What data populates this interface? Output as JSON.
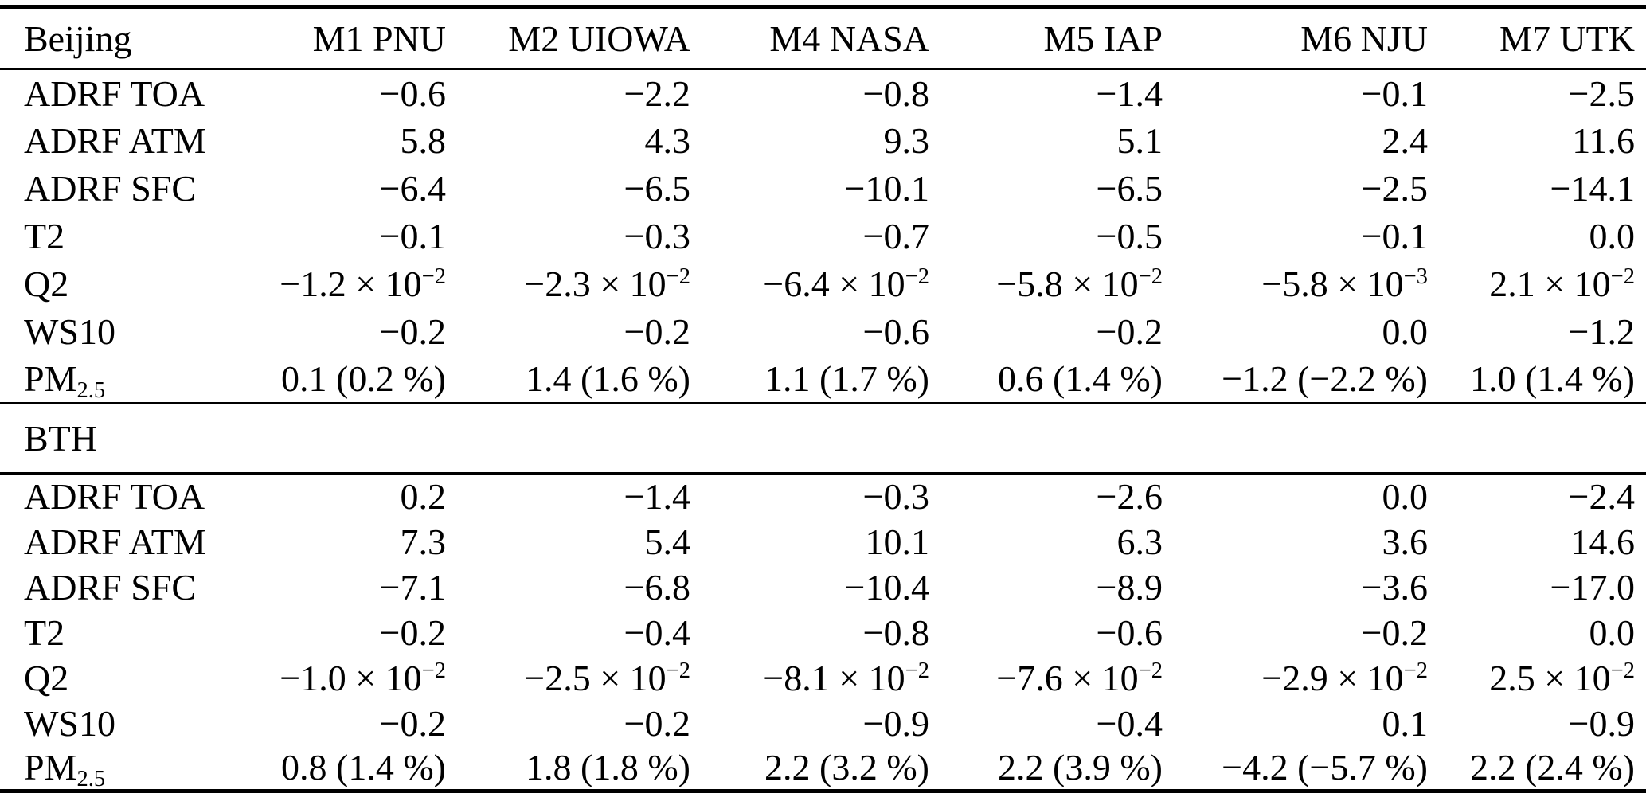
{
  "table": {
    "header": [
      "Beijing",
      "M1 PNU",
      "M2 UIOWA",
      "M4 NASA",
      "M5 IAP",
      "M6 NJU",
      "M7 UTK"
    ],
    "divider": "BTH",
    "beijing_rows": [
      {
        "label": "ADRF TOA",
        "values": [
          "−0.6",
          "−2.2",
          "−0.8",
          "−1.4",
          "−0.1",
          "−2.5"
        ]
      },
      {
        "label": "ADRF ATM",
        "values": [
          "5.8",
          "4.3",
          "9.3",
          "5.1",
          "2.4",
          "11.6"
        ]
      },
      {
        "label": "ADRF SFC",
        "values": [
          "−6.4",
          "−6.5",
          "−10.1",
          "−6.5",
          "−2.5",
          "−14.1"
        ]
      },
      {
        "label": "T2",
        "values": [
          "−0.1",
          "−0.3",
          "−0.7",
          "−0.5",
          "−0.1",
          "0.0"
        ]
      },
      {
        "label": "Q2",
        "values": [
          "−1.2 × 10^{−2}",
          "−2.3 × 10^{−2}",
          "−6.4 × 10^{−2}",
          "−5.8 × 10^{−2}",
          "−5.8 × 10^{−3}",
          "2.1 × 10^{−2}"
        ]
      },
      {
        "label": "WS10",
        "values": [
          "−0.2",
          "−0.2",
          "−0.6",
          "−0.2",
          "0.0",
          "−1.2"
        ]
      },
      {
        "label": "PM_{2.5}",
        "values": [
          "0.1 (0.2 %)",
          "1.4 (1.6 %)",
          "1.1 (1.7 %)",
          "0.6 (1.4 %)",
          "−1.2 (−2.2 %)",
          "1.0 (1.4 %)"
        ]
      }
    ],
    "bth_rows": [
      {
        "label": "ADRF TOA",
        "values": [
          "0.2",
          "−1.4",
          "−0.3",
          "−2.6",
          "0.0",
          "−2.4"
        ]
      },
      {
        "label": "ADRF ATM",
        "values": [
          "7.3",
          "5.4",
          "10.1",
          "6.3",
          "3.6",
          "14.6"
        ]
      },
      {
        "label": "ADRF SFC",
        "values": [
          "−7.1",
          "−6.8",
          "−10.4",
          "−8.9",
          "−3.6",
          "−17.0"
        ]
      },
      {
        "label": "T2",
        "values": [
          "−0.2",
          "−0.4",
          "−0.8",
          "−0.6",
          "−0.2",
          "0.0"
        ]
      },
      {
        "label": "Q2",
        "values": [
          "−1.0 × 10^{−2}",
          "−2.5 × 10^{−2}",
          "−8.1 × 10^{−2}",
          "−7.6 × 10^{−2}",
          "−2.9 × 10^{−2}",
          "2.5 × 10^{−2}"
        ]
      },
      {
        "label": "WS10",
        "values": [
          "−0.2",
          "−0.2",
          "−0.9",
          "−0.4",
          "0.1",
          "−0.9"
        ]
      },
      {
        "label": "PM_{2.5}",
        "values": [
          "0.8 (1.4 %)",
          "1.8 (1.8 %)",
          "2.2 (3.2 %)",
          "2.2 (3.9 %)",
          "−4.2 (−5.7 %)",
          "2.2 (2.4 %)"
        ]
      }
    ]
  }
}
